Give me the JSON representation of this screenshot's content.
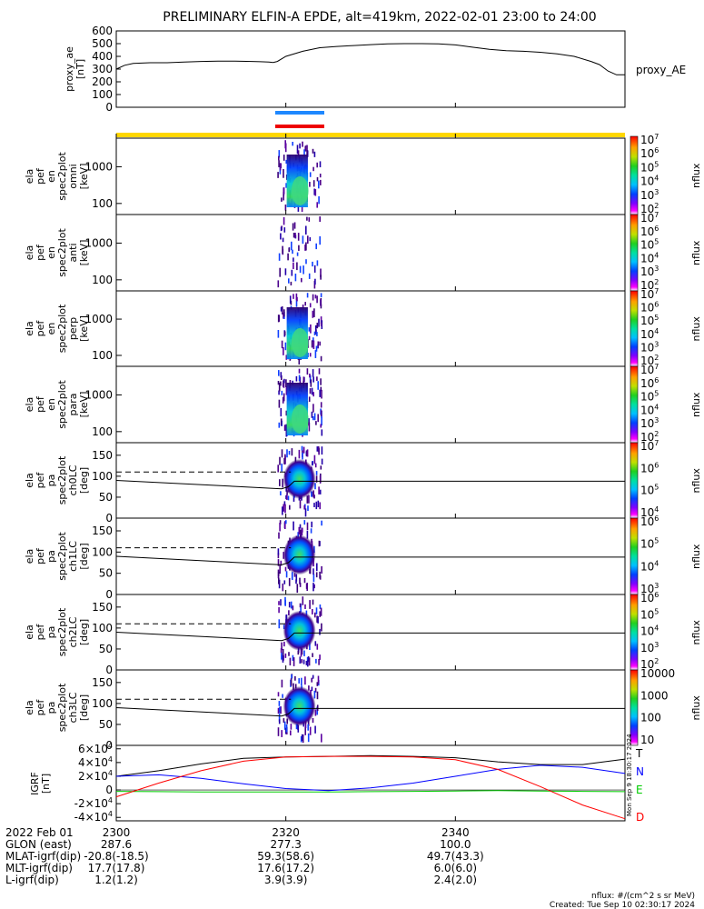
{
  "title": "PRELIMINARY ELFIN-A EPDE, alt=419km, 2022-02-01 23:00 to 24:00",
  "chart_data": [
    {
      "type": "line",
      "ylabel": [
        "proxy_ae",
        "[nT]"
      ],
      "legend": "proxy_AE",
      "ylim": [
        0,
        600
      ],
      "yticks": [
        "0",
        "100",
        "200",
        "300",
        "400",
        "500",
        "600"
      ],
      "x": [
        0,
        1,
        2,
        4,
        6,
        8,
        10,
        12,
        14,
        16,
        17,
        18,
        18.5,
        19,
        20,
        22,
        24,
        26,
        28,
        30,
        32,
        34,
        36,
        38,
        40,
        42,
        44,
        46,
        48,
        50,
        52,
        54,
        56,
        57,
        58,
        59,
        60
      ],
      "values": [
        300,
        330,
        345,
        350,
        350,
        355,
        360,
        362,
        362,
        360,
        358,
        355,
        352,
        360,
        400,
        440,
        468,
        478,
        485,
        492,
        498,
        500,
        500,
        498,
        490,
        472,
        455,
        445,
        440,
        432,
        420,
        400,
        360,
        335,
        285,
        255,
        255
      ]
    },
    {
      "type": "heatmap",
      "ylabel": [
        "ela",
        "pef",
        "en",
        "spec2plot",
        "omni",
        "[keV]"
      ],
      "yticks": [
        "100",
        "1000"
      ],
      "colorbar": {
        "label": "nflux",
        "ticks": [
          "10^2",
          "10^3",
          "10^4",
          "10^5",
          "10^6",
          "10^7"
        ]
      }
    },
    {
      "type": "heatmap",
      "ylabel": [
        "ela",
        "pef",
        "en",
        "spec2plot",
        "anti",
        "[keV]"
      ],
      "yticks": [
        "100",
        "1000"
      ],
      "colorbar": {
        "label": "nflux",
        "ticks": [
          "10^2",
          "10^3",
          "10^4",
          "10^5",
          "10^6",
          "10^7"
        ]
      }
    },
    {
      "type": "heatmap",
      "ylabel": [
        "ela",
        "pef",
        "en",
        "spec2plot",
        "perp",
        "[keV]"
      ],
      "yticks": [
        "100",
        "1000"
      ],
      "colorbar": {
        "label": "nflux",
        "ticks": [
          "10^2",
          "10^3",
          "10^4",
          "10^5",
          "10^6",
          "10^7"
        ]
      }
    },
    {
      "type": "heatmap",
      "ylabel": [
        "ela",
        "pef",
        "en",
        "spec2plot",
        "para",
        "[keV]"
      ],
      "yticks": [
        "100",
        "1000"
      ],
      "colorbar": {
        "label": "nflux",
        "ticks": [
          "10^2",
          "10^3",
          "10^4",
          "10^5",
          "10^6",
          "10^7"
        ]
      }
    },
    {
      "type": "heatmap",
      "ylabel": [
        "ela",
        "pef",
        "pa",
        "spec2plot",
        "ch0LC",
        "[deg]"
      ],
      "yticks": [
        "0",
        "50",
        "100",
        "150"
      ],
      "colorbar": {
        "label": "nflux",
        "ticks": [
          "10^4",
          "10^5",
          "10^6",
          "10^7"
        ]
      }
    },
    {
      "type": "heatmap",
      "ylabel": [
        "ela",
        "pef",
        "pa",
        "spec2plot",
        "ch1LC",
        "[deg]"
      ],
      "yticks": [
        "0",
        "50",
        "100",
        "150"
      ],
      "colorbar": {
        "label": "nflux",
        "ticks": [
          "10^3",
          "10^4",
          "10^5",
          "10^6"
        ]
      }
    },
    {
      "type": "heatmap",
      "ylabel": [
        "ela",
        "pef",
        "pa",
        "spec2plot",
        "ch2LC",
        "[deg]"
      ],
      "yticks": [
        "0",
        "50",
        "100",
        "150"
      ],
      "colorbar": {
        "label": "nflux",
        "ticks": [
          "10^2",
          "10^3",
          "10^4",
          "10^5",
          "10^6"
        ]
      }
    },
    {
      "type": "heatmap",
      "ylabel": [
        "ela",
        "pef",
        "pa",
        "spec2plot",
        "ch3LC",
        "[deg]"
      ],
      "yticks": [
        "0",
        "50",
        "100",
        "150"
      ],
      "colorbar": {
        "label": "nflux",
        "ticks": [
          "10",
          "100",
          "1000",
          "10000"
        ]
      }
    },
    {
      "type": "line",
      "ylabel": [
        "IGRF",
        "[nT]"
      ],
      "ylim": [
        -45000,
        65000
      ],
      "yticks": [
        "-4×10^4",
        "-2×10^4",
        "0",
        "2×10^4",
        "4×10^4",
        "6×10^4"
      ],
      "x": [
        0,
        5,
        10,
        15,
        20,
        25,
        30,
        35,
        40,
        45,
        50,
        55,
        60
      ],
      "series": [
        {
          "name": "T",
          "color": "#000000",
          "values": [
            20000,
            28000,
            38000,
            46000,
            48000,
            49000,
            50000,
            49000,
            47000,
            41000,
            37000,
            37000,
            45000
          ]
        },
        {
          "name": "N",
          "color": "#0000ff",
          "values": [
            20000,
            22000,
            17000,
            9000,
            2000,
            -1000,
            3000,
            10000,
            20000,
            30000,
            36000,
            33000,
            24000
          ]
        },
        {
          "name": "E",
          "color": "#00cc00",
          "values": [
            -2000,
            -2500,
            -3000,
            -3000,
            -3000,
            -2800,
            -2500,
            -2000,
            -1500,
            -1000,
            -1500,
            -2000,
            -2500
          ]
        },
        {
          "name": "D",
          "color": "#ff0000",
          "values": [
            -10000,
            10000,
            28000,
            42000,
            48000,
            49000,
            49000,
            48000,
            44000,
            30000,
            5000,
            -22000,
            -42000
          ]
        }
      ]
    }
  ],
  "time_axis": {
    "tick_labels": [
      "2300",
      "2320",
      "2340"
    ],
    "tick_minutes": [
      0,
      20,
      40
    ],
    "range_minutes": [
      0,
      60
    ]
  },
  "footer": {
    "rows": [
      {
        "label": "2022 Feb 01",
        "v1": "2300",
        "v2": "2320",
        "v3": "2340"
      },
      {
        "label": "GLON (east)",
        "v1": "287.6",
        "v2": "277.3",
        "v3": "100.0"
      },
      {
        "label": "MLAT-igrf(dip)",
        "v1": "-20.8(-18.5)",
        "v2": "59.3(58.6)",
        "v3": "49.7(43.3)"
      },
      {
        "label": "MLT-igrf(dip)",
        "v1": "17.7(17.8)",
        "v2": "17.6(17.2)",
        "v3": "6.0(6.0)"
      },
      {
        "label": "L-igrf(dip)",
        "v1": "1.2(1.2)",
        "v2": "3.9(3.9)",
        "v3": "2.4(2.0)"
      }
    ],
    "note1": "nflux: #/(cm^2 s sr MeV)",
    "note2": "Created: Tue Sep 10 02:30:17 2024",
    "stamp": "Mon Sep 9 18:30:17 2024"
  },
  "colors": {
    "yellow_bar": "#ffd700",
    "blue_bar": "#1e88ff",
    "red_bar": "#ee0000"
  }
}
